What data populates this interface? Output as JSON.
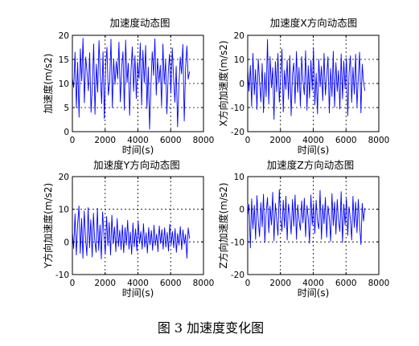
{
  "figure": {
    "caption": "图 3 加速度变化图"
  },
  "style": {
    "line_color": "#0000ff",
    "axis_color": "#000000",
    "grid_color": "#000000",
    "grid": "dotted"
  },
  "chart_data": [
    {
      "type": "line",
      "title": "加速度动态图",
      "xlabel": "时间(s)",
      "ylabel": "加速度(m/s2)",
      "xlim": [
        0,
        8000
      ],
      "ylim": [
        0,
        20
      ],
      "xticks": [
        0,
        2000,
        4000,
        6000,
        8000
      ],
      "yticks": [
        0,
        5,
        10,
        15,
        20
      ],
      "grid": true,
      "series": [
        {
          "values": [
            11,
            9.2,
            16.5,
            5,
            14.4,
            3,
            17.2,
            10.5,
            19.4,
            6,
            15.5,
            12.5,
            8.5,
            16.4,
            4,
            9.5,
            18.2,
            3.6,
            14,
            8.2,
            18.9,
            11.5,
            5.8,
            16.6,
            2.7,
            13.8,
            17.5,
            7.6,
            10.5,
            19.2,
            5,
            15.1,
            9.8,
            14.6,
            11,
            18.6,
            6.2,
            13.3,
            16.6,
            4.5,
            19,
            10.2,
            14.2,
            3.4,
            12.3,
            17.6,
            8.4,
            15.8,
            6.9,
            14.5,
            11,
            18.4,
            5.5,
            16.9,
            10.2,
            17.9,
            4.8,
            13.4,
            0.5,
            9.6,
            16.6,
            11.7,
            19.3,
            7.6,
            15.2,
            10.2,
            13.8,
            5.3,
            18.2,
            9.9,
            14.9,
            3.7,
            12.2,
            16.1,
            8,
            17.4,
            11.4,
            6.1,
            13.6,
            1,
            9.2,
            15.5,
            12,
            18.1,
            2.2,
            13,
            17.8,
            10.9,
            12.5
          ]
        }
      ]
    },
    {
      "type": "line",
      "title": "加速度X方向动态图",
      "xlabel": "时间(s)",
      "ylabel": "X方向加速度(m/s2)",
      "xlim": [
        0,
        8000
      ],
      "ylim": [
        -20,
        20
      ],
      "xticks": [
        0,
        2000,
        4000,
        6000,
        8000
      ],
      "yticks": [
        -20,
        -10,
        0,
        10,
        20
      ],
      "grid": true,
      "series": [
        {
          "values": [
            6.2,
            -3.2,
            7.5,
            -9.5,
            12.5,
            -4.6,
            5.8,
            -10.8,
            10.2,
            0.8,
            -7.6,
            8.3,
            -12.1,
            4.5,
            -5.5,
            18.3,
            -8.6,
            11.2,
            -1.8,
            6.6,
            -14.9,
            9.1,
            -3.4,
            12.5,
            -7.8,
            2.2,
            14.3,
            -11.8,
            5.5,
            -2.4,
            9.7,
            -6.5,
            11.6,
            -13.4,
            4.1,
            8.5,
            -8.3,
            13.3,
            -3.7,
            6.7,
            -9.4,
            11.2,
            0.9,
            -4.6,
            13.6,
            -11.1,
            7.4,
            -6,
            9.6,
            -2.8,
            14.7,
            -8.9,
            4.3,
            -12.6,
            10.1,
            -1.4,
            7.2,
            -7.1,
            12.5,
            -4.8,
            2.7,
            11.1,
            -12.3,
            6.2,
            -5.4,
            13.4,
            -9.8,
            8.7,
            -3.3,
            5.4,
            -10.6,
            12.3,
            -6.4,
            9.3,
            -2.2,
            10.6,
            -13.4,
            4.1,
            11.5,
            -7.8,
            6.8,
            -4.4,
            12.1,
            -9.7,
            2.4,
            13,
            -12.2,
            8,
            0.7,
            -3
          ]
        }
      ]
    },
    {
      "type": "line",
      "title": "加速度Y方向动态图",
      "xlabel": "时间(s)",
      "ylabel": "Y方向加速度(m/s2)",
      "xlim": [
        0,
        8000
      ],
      "ylim": [
        -10,
        20
      ],
      "xticks": [
        0,
        2000,
        4000,
        6000,
        8000
      ],
      "yticks": [
        -10,
        0,
        10,
        20
      ],
      "grid": true,
      "series": [
        {
          "values": [
            3,
            -2,
            8.6,
            -4,
            5.4,
            11,
            -3.5,
            7.2,
            -5,
            9.5,
            1.2,
            -4.2,
            10.5,
            -1.8,
            6.8,
            -4.6,
            8.8,
            0.5,
            -3.2,
            10.3,
            -2.6,
            5.2,
            -5.2,
            9.2,
            1.9,
            -3.8,
            7.8,
            -1.2,
            6,
            -4,
            8.2,
            -0.6,
            4.6,
            -3,
            7.2,
            -1.4,
            3.6,
            -2.4,
            5.2,
            -3.3,
            4.4,
            -1,
            6.6,
            -2.2,
            3,
            -3.8,
            5.8,
            -1.5,
            4,
            -2.8,
            6.4,
            -0.5,
            3.2,
            -2.2,
            5.6,
            -1.6,
            2.8,
            -3.4,
            4.4,
            -0.9,
            3.5,
            -2.6,
            5.1,
            -1.1,
            2.4,
            -3,
            4.9,
            -0.5,
            3.8,
            -2.2,
            4.3,
            -1.6,
            2.9,
            -2.8,
            5.4,
            -0.9,
            3.2,
            -1.8,
            4.1,
            -3.2,
            2.6,
            -1,
            4.7,
            -2.4,
            3.7,
            -0.7,
            2.3,
            -5,
            4.3,
            1
          ]
        }
      ]
    },
    {
      "type": "line",
      "title": "加速度Z方向动态图",
      "xlabel": "时间(s)",
      "ylabel": "Z方向加速度(m/s2)",
      "xlim": [
        0,
        8000
      ],
      "ylim": [
        -20,
        10
      ],
      "xticks": [
        0,
        2000,
        4000,
        6000,
        8000
      ],
      "yticks": [
        -20,
        -10,
        0,
        10
      ],
      "grid": true,
      "series": [
        {
          "values": [
            -2,
            1.5,
            -11.8,
            3.2,
            -6,
            1.2,
            -9.2,
            4.2,
            -3.5,
            -8.4,
            2,
            -5.4,
            4.6,
            -10.2,
            -1.2,
            3.6,
            -7.2,
            1,
            -4.8,
            5.2,
            -9.6,
            1.8,
            -3,
            -8,
            6,
            -2.4,
            -6.8,
            2.8,
            -5.6,
            4,
            -9.4,
            1.6,
            -1.8,
            -7.6,
            3,
            -5.2,
            4.4,
            -9.2,
            1.4,
            -3.2,
            -6.4,
            2.6,
            -4.2,
            3.4,
            -8.4,
            1.2,
            -2.6,
            -10.4,
            4.4,
            -4.8,
            1.8,
            -7.4,
            2.8,
            -3.8,
            -6,
            5.8,
            -9.2,
            1.4,
            -4.4,
            3.6,
            -8.6,
            1,
            -2.6,
            -9.8,
            4.8,
            -5,
            2.2,
            -7.6,
            3,
            -3.4,
            -6.8,
            5.4,
            -10.2,
            1.6,
            -4.8,
            3.4,
            -8,
            0.8,
            -3,
            -9.4,
            4,
            -5.6,
            2.2,
            -7.2,
            3,
            -4.6,
            -10.8,
            1.8,
            -3.6,
            0.4
          ]
        }
      ]
    }
  ]
}
